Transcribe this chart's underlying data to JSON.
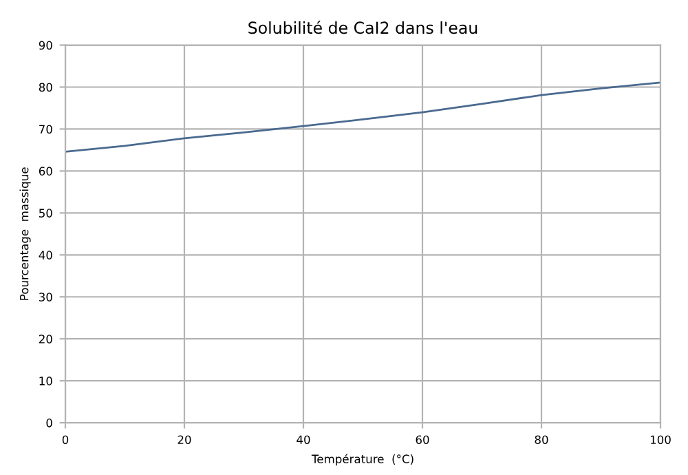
{
  "chart_data": {
    "type": "line",
    "title": "Solubilité de CaI2 dans l'eau",
    "xlabel": "Température  (°C)",
    "ylabel": "Pourcentage  massique",
    "x": [
      0,
      10,
      20,
      30,
      40,
      50,
      60,
      70,
      80,
      90,
      100
    ],
    "series": [
      {
        "color": "#4a6a8f",
        "values": [
          64.6,
          66,
          67.8,
          69.2,
          70.7,
          72.3,
          74,
          76,
          78.1,
          79.7,
          81.1
        ]
      }
    ],
    "xlim": [
      0,
      100
    ],
    "xticks": [
      0,
      20,
      40,
      60,
      80,
      100
    ],
    "ylim": [
      0,
      90
    ],
    "yticks": [
      0,
      10,
      20,
      30,
      40,
      50,
      60,
      70,
      80,
      90
    ],
    "grid": true,
    "marker": "none",
    "line_style": "solid"
  }
}
